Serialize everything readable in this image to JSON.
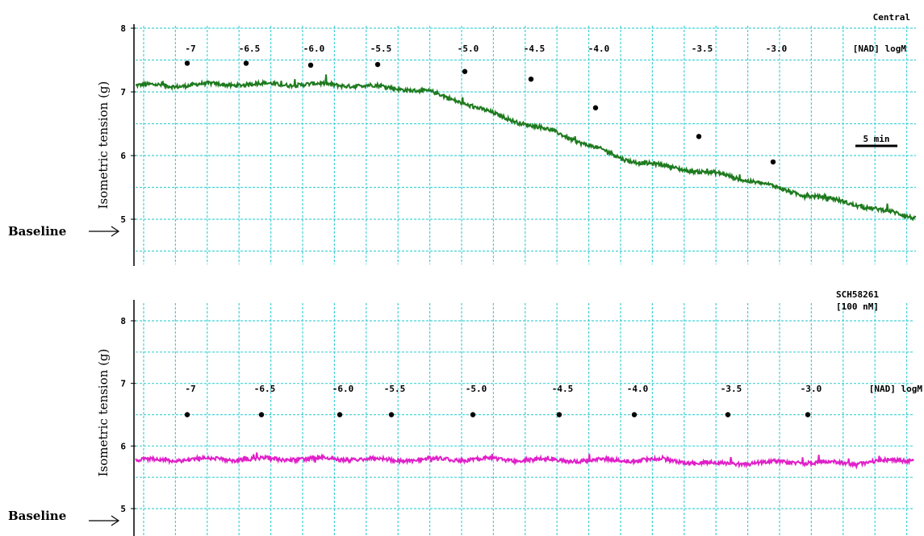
{
  "chart_data": [
    {
      "type": "line",
      "title": "Central",
      "ylabel": "Isometric tension (g)",
      "ylim": [
        4.5,
        8
      ],
      "y_ticks": [
        5,
        6,
        7,
        8
      ],
      "grid": true,
      "baseline_label": "Baseline",
      "scale_bar_label": "5 min",
      "unit_label": "[NAD] logM",
      "doses": [
        "-7",
        "-6.5",
        "-6.0",
        "-5.5",
        "-5.0",
        "-4.5",
        "-4.0",
        "-3.5",
        "-3.0"
      ],
      "dose_dot_tension": [
        7.45,
        7.45,
        7.42,
        7.43,
        7.32,
        7.2,
        6.75,
        6.3,
        5.9
      ],
      "series": [
        {
          "color": "#1e7a1e",
          "trace_time_min": [
            0,
            5,
            10,
            15,
            20,
            25,
            28,
            30,
            33,
            36,
            40,
            44,
            48,
            52,
            56,
            60,
            64,
            68,
            72,
            76,
            80,
            84,
            88,
            92,
            96
          ],
          "trace_tension": [
            7.1,
            7.1,
            7.12,
            7.12,
            7.12,
            7.11,
            7.1,
            7.08,
            7.05,
            7.0,
            6.85,
            6.65,
            6.5,
            6.35,
            6.15,
            5.95,
            5.85,
            5.78,
            5.7,
            5.6,
            5.45,
            5.35,
            5.25,
            5.13,
            5.03
          ]
        }
      ]
    },
    {
      "type": "line",
      "title": "SCH58261 [100 nM]",
      "ylabel": "Isometric tension (g)",
      "ylim": [
        4.9,
        8.4
      ],
      "y_ticks": [
        5,
        6,
        7,
        8
      ],
      "grid": true,
      "baseline_label": "Baseline",
      "unit_label": "[NAD] logM",
      "doses": [
        "-7",
        "-6.5",
        "-6.0",
        "-5.5",
        "-5.0",
        "-4.5",
        "-4.0",
        "-3.5",
        "-3.0"
      ],
      "dose_dot_tension": [
        6.5,
        6.5,
        6.5,
        6.5,
        6.5,
        6.5,
        6.5,
        6.5,
        6.5
      ],
      "series": [
        {
          "color": "#e020c8",
          "trace_time_min": [
            0,
            8,
            16,
            24,
            32,
            40,
            48,
            56,
            64,
            72,
            80,
            88,
            96
          ],
          "trace_tension": [
            5.77,
            5.79,
            5.79,
            5.8,
            5.78,
            5.79,
            5.78,
            5.77,
            5.78,
            5.72,
            5.74,
            5.73,
            5.78
          ]
        }
      ]
    }
  ]
}
